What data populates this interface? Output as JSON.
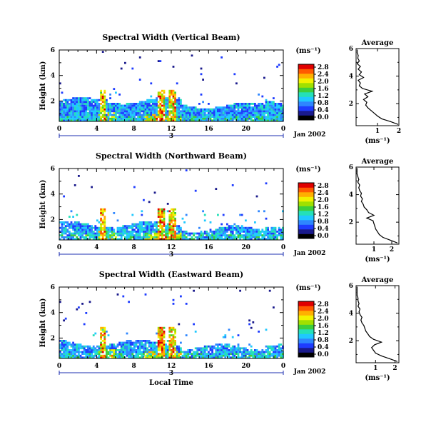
{
  "chart_data": [
    {
      "type": "heatmap",
      "title": "Spectral Width (Vertical Beam)",
      "ylabel": "Height (km)",
      "xlabel": "",
      "x_ticks": [
        "0",
        "4",
        "8",
        "12",
        "16",
        "20",
        "0"
      ],
      "y_ticks": [
        "2",
        "4",
        "6"
      ],
      "xlim": [
        0,
        24
      ],
      "ylim": [
        0.4,
        6.0
      ],
      "date_marker": "3",
      "date_label": "Jan 2002",
      "colorbar_unit": "(ms⁻¹)",
      "colorbar_ticks": [
        "0.0",
        "0.4",
        "0.8",
        "1.2",
        "1.6",
        "2.0",
        "2.4",
        "2.8"
      ],
      "clim": [
        0.0,
        2.8
      ],
      "contour_ridge_hours": [
        4.6,
        10.8,
        12.0
      ],
      "profile": {
        "title": "Average",
        "xlabel": "(ms⁻¹)",
        "x_ticks": [
          "1",
          "2"
        ],
        "xlim": [
          0,
          2
        ],
        "ylim": [
          0.4,
          6.0
        ],
        "y_ticks": [
          "2",
          "4",
          "6"
        ],
        "heights": [
          0.5,
          0.7,
          0.9,
          1.1,
          1.3,
          1.5,
          1.7,
          1.9,
          2.1,
          2.3,
          2.5,
          2.7,
          2.9,
          3.1,
          3.3,
          3.5,
          3.7,
          3.9,
          4.1,
          4.3,
          4.5,
          4.7,
          4.9,
          5.1,
          5.3,
          5.5,
          5.7,
          5.9
        ],
        "values": [
          1.95,
          1.6,
          1.2,
          1.0,
          0.85,
          0.7,
          0.55,
          0.45,
          0.5,
          0.35,
          0.55,
          0.4,
          0.75,
          0.3,
          0.15,
          0.2,
          0.1,
          0.35,
          0.15,
          0.25,
          0.1,
          0.2,
          0.05,
          0.15,
          0.08,
          0.1,
          0.05,
          0.05
        ]
      }
    },
    {
      "type": "heatmap",
      "title": "Spectral Width (Northward Beam)",
      "ylabel": "Height (km)",
      "xlabel": "",
      "x_ticks": [
        "0",
        "4",
        "8",
        "12",
        "16",
        "20",
        "0"
      ],
      "y_ticks": [
        "2",
        "4",
        "6"
      ],
      "xlim": [
        0,
        24
      ],
      "ylim": [
        0.4,
        6.0
      ],
      "date_marker": "3",
      "date_label": "Jan 2002",
      "colorbar_unit": "(ms⁻¹)",
      "colorbar_ticks": [
        "0.0",
        "0.4",
        "0.8",
        "1.2",
        "1.6",
        "2.0",
        "2.4",
        "2.8"
      ],
      "clim": [
        0.0,
        2.8
      ],
      "contour_ridge_hours": [
        4.6,
        10.8,
        12.0
      ],
      "profile": {
        "title": "Average",
        "xlabel": "(ms⁻¹)",
        "x_ticks": [
          "1",
          "2"
        ],
        "xlim": [
          0,
          2.4
        ],
        "ylim": [
          0.4,
          6.0
        ],
        "y_ticks": [
          "2",
          "4",
          "6"
        ],
        "heights": [
          0.5,
          0.7,
          0.9,
          1.1,
          1.3,
          1.5,
          1.7,
          1.9,
          2.1,
          2.3,
          2.5,
          2.7,
          2.9,
          3.1,
          3.3,
          3.5,
          3.7,
          3.9,
          4.1,
          4.3,
          4.5,
          4.7,
          4.9,
          5.1,
          5.3,
          5.5,
          5.7,
          5.9
        ],
        "values": [
          2.3,
          1.9,
          1.5,
          1.3,
          1.2,
          1.1,
          1.05,
          1.0,
          0.95,
          0.6,
          1.0,
          0.7,
          0.6,
          0.45,
          0.4,
          0.3,
          0.35,
          0.25,
          0.3,
          0.2,
          0.15,
          0.2,
          0.1,
          0.15,
          0.1,
          0.05,
          0.05,
          0.05
        ]
      }
    },
    {
      "type": "heatmap",
      "title": "Spectral Width (Eastward Beam)",
      "ylabel": "Height (km)",
      "xlabel": "Local Time",
      "x_ticks": [
        "0",
        "4",
        "8",
        "12",
        "16",
        "20",
        "0"
      ],
      "y_ticks": [
        "2",
        "4",
        "6"
      ],
      "xlim": [
        0,
        24
      ],
      "ylim": [
        0.4,
        6.0
      ],
      "date_marker": "3",
      "date_label": "Jan 2002",
      "colorbar_unit": "(ms⁻¹)",
      "colorbar_ticks": [
        "0.0",
        "0.4",
        "0.8",
        "1.2",
        "1.6",
        "2.0",
        "2.4",
        "2.8"
      ],
      "clim": [
        0.0,
        2.8
      ],
      "contour_ridge_hours": [
        4.6,
        10.8,
        12.0
      ],
      "profile": {
        "title": "Average",
        "xlabel": "(ms⁻¹)",
        "x_ticks": [
          "1",
          "2"
        ],
        "xlim": [
          0,
          2.2
        ],
        "ylim": [
          0.4,
          6.0
        ],
        "y_ticks": [
          "2",
          "4",
          "6"
        ],
        "heights": [
          0.5,
          0.7,
          0.9,
          1.1,
          1.3,
          1.5,
          1.7,
          1.9,
          2.1,
          2.3,
          2.5,
          2.7,
          2.9,
          3.1,
          3.3,
          3.5,
          3.7,
          3.9,
          4.1,
          4.3,
          4.5,
          4.7,
          4.9,
          5.1,
          5.3,
          5.5,
          5.7,
          5.9
        ],
        "values": [
          2.1,
          1.7,
          1.3,
          1.0,
          0.9,
          0.8,
          0.95,
          1.3,
          0.9,
          0.7,
          0.6,
          0.5,
          0.45,
          0.4,
          0.3,
          0.25,
          0.3,
          0.2,
          0.15,
          0.2,
          0.1,
          0.15,
          0.1,
          0.1,
          0.05,
          0.05,
          0.05,
          0.05
        ]
      }
    }
  ],
  "colormap": [
    "#000000",
    "#1a1a8c",
    "#1e3cff",
    "#2e86ff",
    "#1fc8ff",
    "#24e0b8",
    "#3ccf3c",
    "#a0e000",
    "#f2f200",
    "#ffb000",
    "#ff5a00",
    "#e00000"
  ]
}
